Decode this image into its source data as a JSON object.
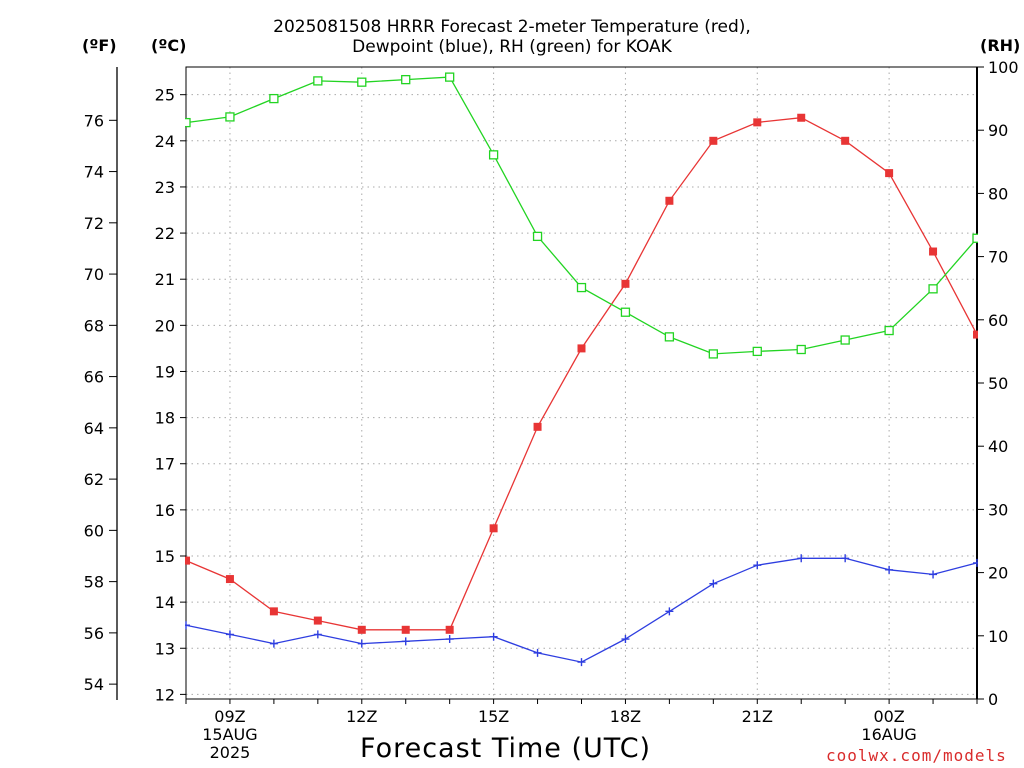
{
  "title_line1": "2025081508 HRRR Forecast 2-meter Temperature (red),",
  "title_line2": "Dewpoint (blue), RH (green) for KOAK",
  "units": {
    "f": "(ºF)",
    "c": "(ºC)",
    "rh": "(RH)"
  },
  "xlabel": "Forecast Time (UTC)",
  "credit": "coolwx.com/models",
  "chart_data": {
    "type": "line",
    "x": [
      "08Z",
      "09Z",
      "10Z",
      "11Z",
      "12Z",
      "13Z",
      "14Z",
      "15Z",
      "16Z",
      "17Z",
      "18Z",
      "19Z",
      "20Z",
      "21Z",
      "22Z",
      "23Z",
      "00Z",
      "01Z",
      "02Z"
    ],
    "x_tick_labels": [
      {
        "hour": "09Z",
        "lines": [
          "09Z",
          "15AUG",
          "2025"
        ]
      },
      {
        "hour": "12Z",
        "lines": [
          "12Z"
        ]
      },
      {
        "hour": "15Z",
        "lines": [
          "15Z"
        ]
      },
      {
        "hour": "18Z",
        "lines": [
          "18Z"
        ]
      },
      {
        "hour": "21Z",
        "lines": [
          "21Z"
        ]
      },
      {
        "hour": "00Z",
        "lines": [
          "00Z",
          "16AUG"
        ]
      }
    ],
    "ylim_c": [
      11.9,
      25.6
    ],
    "yticks_c": [
      "12",
      "13",
      "14",
      "15",
      "16",
      "17",
      "18",
      "19",
      "20",
      "21",
      "22",
      "23",
      "24",
      "25"
    ],
    "yticks_f": [
      "54",
      "56",
      "58",
      "60",
      "62",
      "64",
      "66",
      "68",
      "70",
      "72",
      "74",
      "76"
    ],
    "ylim_rh": [
      0,
      100
    ],
    "yticks_rh": [
      "0",
      "10",
      "20",
      "30",
      "40",
      "50",
      "60",
      "70",
      "80",
      "90",
      "100"
    ],
    "grid": true,
    "series": [
      {
        "name": "Temperature",
        "axis": "c",
        "color": "#e83535",
        "marker": "filled-square",
        "values": [
          14.9,
          14.5,
          13.8,
          13.6,
          13.4,
          13.4,
          13.4,
          15.6,
          17.8,
          19.5,
          20.9,
          22.7,
          24.0,
          24.4,
          24.5,
          24.0,
          23.3,
          21.6,
          19.8
        ]
      },
      {
        "name": "Dewpoint",
        "axis": "c",
        "color": "#2e3ee0",
        "marker": "plus",
        "values": [
          13.5,
          13.3,
          13.1,
          13.3,
          13.1,
          13.15,
          13.2,
          13.25,
          12.9,
          12.7,
          13.2,
          13.8,
          14.4,
          14.8,
          14.95,
          14.95,
          14.7,
          14.6,
          14.85
        ]
      },
      {
        "name": "RH",
        "axis": "rh",
        "color": "#22d422",
        "marker": "open-square",
        "values": [
          91.2,
          92.1,
          95.0,
          97.8,
          97.6,
          98.0,
          98.4,
          86.1,
          73.2,
          65.1,
          61.2,
          57.3,
          54.6,
          55.0,
          55.3,
          56.8,
          58.3,
          64.9,
          72.9
        ]
      }
    ]
  }
}
